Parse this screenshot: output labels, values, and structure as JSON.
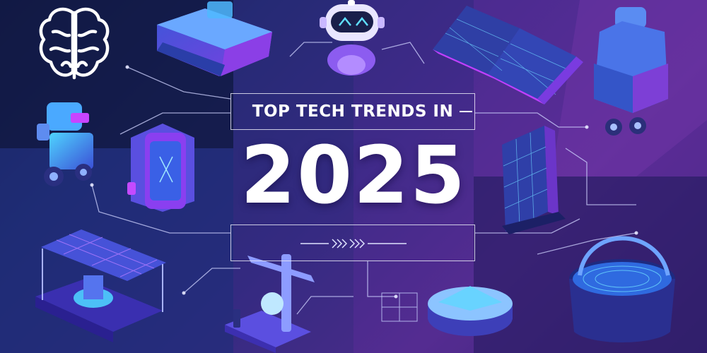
{
  "header": {
    "subtitle": "TOP TECH TRENDS IN",
    "year": "2025"
  },
  "icons": [
    "brain-icon",
    "vr-headset-icon",
    "robot-head-icon",
    "solar-panel-icon",
    "robot-icon",
    "battery-icon",
    "solar-canopy-icon",
    "drone-icon",
    "scanner-arm-icon",
    "smart-speaker-icon",
    "smart-bag-icon"
  ],
  "colors": {
    "accent_cyan": "#3fd2ff",
    "accent_magenta": "#d24bff",
    "accent_purple": "#8b5cf6",
    "dark_navy": "#12183f"
  }
}
